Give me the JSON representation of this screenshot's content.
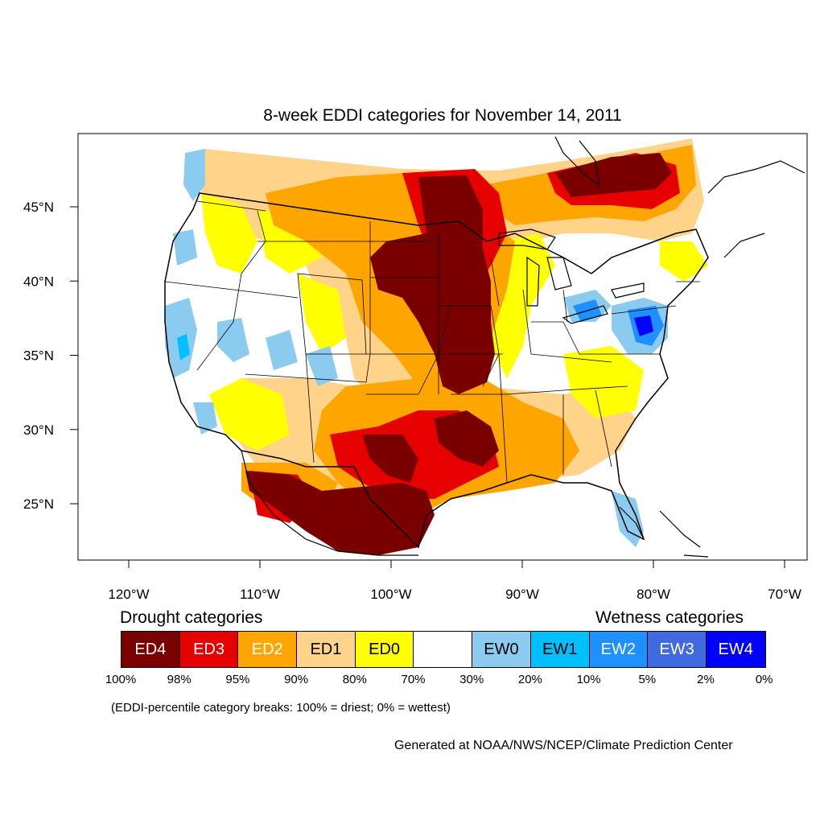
{
  "title": "8-week EDDI categories for November 14, 2011",
  "lat_labels": [
    {
      "text": "45°N",
      "lat": 45
    },
    {
      "text": "40°N",
      "lat": 40
    },
    {
      "text": "35°N",
      "lat": 35
    },
    {
      "text": "30°N",
      "lat": 30
    },
    {
      "text": "25°N",
      "lat": 25
    }
  ],
  "lon_labels": [
    {
      "text": "120°W",
      "lon": -120
    },
    {
      "text": "110°W",
      "lon": -110
    },
    {
      "text": "100°W",
      "lon": -100
    },
    {
      "text": "90°W",
      "lon": -90
    },
    {
      "text": "80°W",
      "lon": -80
    },
    {
      "text": "70°W",
      "lon": -70
    }
  ],
  "legend": {
    "drought_title": "Drought categories",
    "wetness_title": "Wetness categories",
    "categories": [
      {
        "label": "ED4",
        "color": "#7a0000",
        "text_color": "#ffffff"
      },
      {
        "label": "ED3",
        "color": "#e60000",
        "text_color": "#ffffff"
      },
      {
        "label": "ED2",
        "color": "#ffa500",
        "text_color": "#ffffff"
      },
      {
        "label": "ED1",
        "color": "#ffd38a",
        "text_color": "#000000"
      },
      {
        "label": "ED0",
        "color": "#ffff00",
        "text_color": "#000000"
      },
      {
        "label": "",
        "color": "#ffffff",
        "text_color": "#000000"
      },
      {
        "label": "EW0",
        "color": "#8ccbf0",
        "text_color": "#000000"
      },
      {
        "label": "EW1",
        "color": "#00bfff",
        "text_color": "#000000"
      },
      {
        "label": "EW2",
        "color": "#1e90ff",
        "text_color": "#ffffff"
      },
      {
        "label": "EW3",
        "color": "#4169e1",
        "text_color": "#ffffff"
      },
      {
        "label": "EW4",
        "color": "#0000ff",
        "text_color": "#ffffff"
      }
    ],
    "breaks": [
      "100%",
      "98%",
      "95%",
      "90%",
      "80%",
      "70%",
      "30%",
      "20%",
      "10%",
      "5%",
      "2%",
      "0%"
    ],
    "note": "(EDDI-percentile category breaks: 100% = driest; 0% = wettest)"
  },
  "credit": "Generated at NOAA/NWS/NCEP/Climate Prediction Center"
}
